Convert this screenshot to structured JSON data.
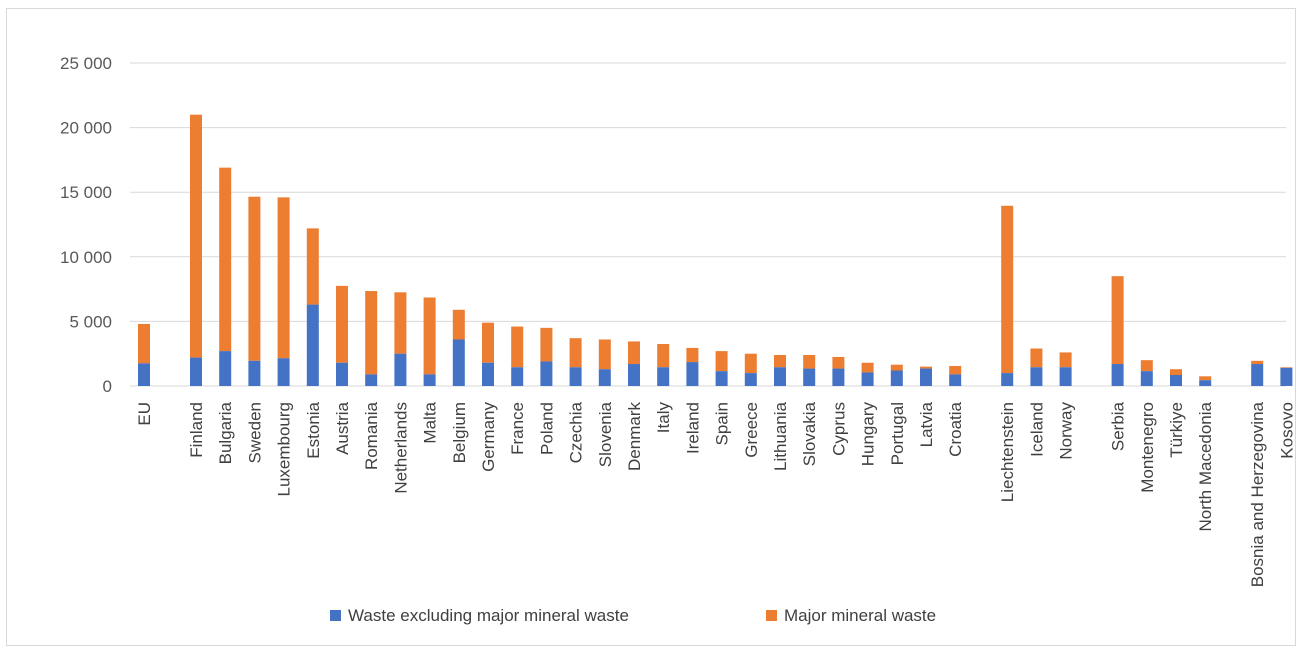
{
  "chart_data": {
    "type": "bar",
    "stacked": true,
    "ylim": [
      0,
      25000
    ],
    "y_ticks": [
      0,
      5000,
      10000,
      15000,
      20000,
      25000
    ],
    "y_tick_labels": [
      "0",
      "5 000",
      "10 000",
      "15 000",
      "20 000",
      "25 000"
    ],
    "grid": true,
    "legend_position": "bottom",
    "categories": [
      "EU",
      "Finland",
      "Bulgaria",
      "Sweden",
      "Luxembourg",
      "Estonia",
      "Austria",
      "Romania",
      "Netherlands",
      "Malta",
      "Belgium",
      "Germany",
      "France",
      "Poland",
      "Czechia",
      "Slovenia",
      "Denmark",
      "Italy",
      "Ireland",
      "Spain",
      "Greece",
      "Lithuania",
      "Slovakia",
      "Cyprus",
      "Hungary",
      "Portugal",
      "Latvia",
      "Croatia",
      "Liechtenstein",
      "Iceland",
      "Norway",
      "Serbia",
      "Montenegro",
      "Türkiye",
      "North Macedonia",
      "Bosnia and Herzegovina",
      "Kosovo"
    ],
    "groups": [
      1,
      27,
      3,
      4,
      2
    ],
    "series": [
      {
        "name": "Waste excluding major mineral waste",
        "color": "#4472c4",
        "values": [
          1750,
          2200,
          2700,
          1950,
          2150,
          6300,
          1800,
          900,
          2500,
          900,
          3600,
          1800,
          1450,
          1900,
          1450,
          1300,
          1700,
          1450,
          1850,
          1150,
          1000,
          1450,
          1350,
          1350,
          1050,
          1200,
          1350,
          900,
          1000,
          1450,
          1450,
          1700,
          1150,
          850,
          450,
          1700,
          1400
        ]
      },
      {
        "name": "Major mineral waste",
        "color": "#ed7d31",
        "values": [
          3050,
          18800,
          14200,
          12700,
          12450,
          5900,
          5950,
          6450,
          4750,
          5950,
          2300,
          3100,
          3150,
          2600,
          2250,
          2300,
          1750,
          1800,
          1100,
          1550,
          1500,
          950,
          1050,
          900,
          750,
          450,
          150,
          650,
          12950,
          1450,
          1150,
          6800,
          850,
          450,
          300,
          250,
          50
        ]
      }
    ]
  },
  "icons": {
    "legend_marker": "square-swatch"
  }
}
